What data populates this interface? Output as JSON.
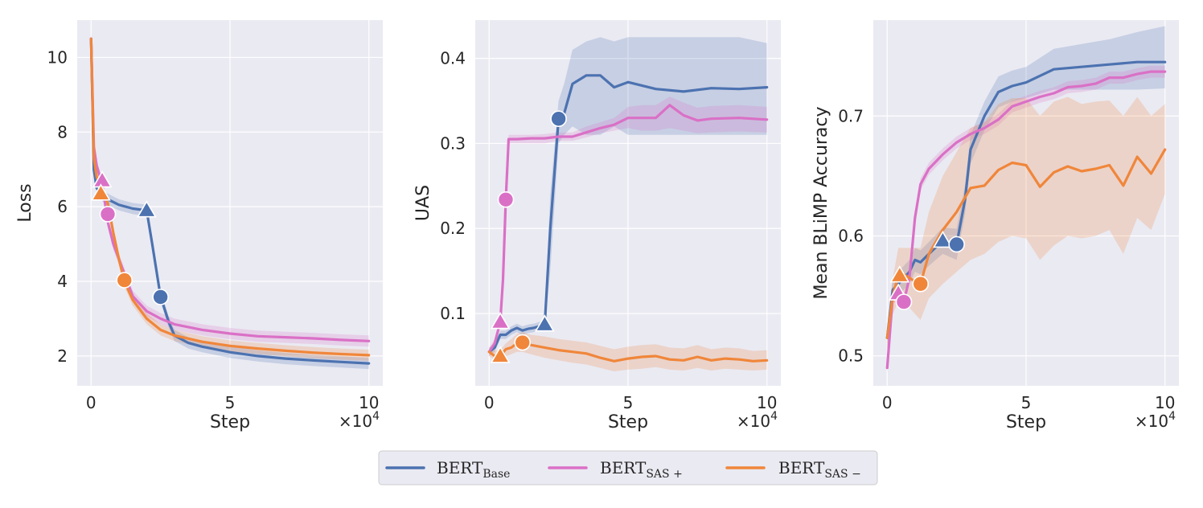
{
  "legend": [
    {
      "base": "BERT",
      "sub": "Base",
      "color": "#4c72b0"
    },
    {
      "base": "BERT",
      "sub": "SAS +",
      "color": "#da70c6"
    },
    {
      "base": "BERT",
      "sub": "SAS −",
      "color": "#f0863a"
    }
  ],
  "scale_label": "×10",
  "scale_exp": "4",
  "chart_data": [
    {
      "type": "line",
      "xlabel": "Step",
      "ylabel": "Loss",
      "xlim": [
        -0.5,
        10.5
      ],
      "ylim": [
        1.2,
        11.0
      ],
      "xticks": [
        0,
        5,
        10
      ],
      "yticks": [
        2,
        4,
        6,
        8,
        10
      ],
      "grid": true,
      "series": [
        {
          "color": "#4c72b0",
          "x": [
            0,
            0.1,
            0.2,
            0.4,
            0.6,
            1,
            1.5,
            2,
            2.2,
            2.5,
            2.8,
            3,
            3.5,
            4,
            5,
            6,
            7,
            8,
            9,
            10
          ],
          "y": [
            10.5,
            7.0,
            6.5,
            6.3,
            6.2,
            6.05,
            5.95,
            5.9,
            5.0,
            3.6,
            2.9,
            2.55,
            2.35,
            2.25,
            2.1,
            2.0,
            1.93,
            1.88,
            1.84,
            1.8
          ],
          "band": [
            0.15,
            0.15,
            0.15,
            0.15,
            0.15,
            0.15,
            0.15,
            0.15,
            0.15,
            0.15,
            0.15,
            0.15,
            0.15,
            0.15,
            0.15,
            0.15,
            0.15,
            0.15,
            0.15,
            0.15
          ],
          "markers": [
            {
              "x": 2.0,
              "y": 5.9,
              "shape": "triangle"
            },
            {
              "x": 2.5,
              "y": 3.58,
              "shape": "circle"
            }
          ]
        },
        {
          "color": "#da70c6",
          "x": [
            0,
            0.1,
            0.2,
            0.4,
            0.6,
            0.8,
            1,
            1.2,
            1.5,
            2,
            2.5,
            3,
            4,
            5,
            6,
            7,
            8,
            9,
            10
          ],
          "y": [
            10.5,
            7.6,
            7.1,
            6.6,
            5.6,
            5.0,
            4.6,
            4.2,
            3.6,
            3.2,
            3.0,
            2.85,
            2.7,
            2.6,
            2.53,
            2.5,
            2.47,
            2.43,
            2.4
          ],
          "band": [
            0.15,
            0.15,
            0.15,
            0.15,
            0.15,
            0.15,
            0.15,
            0.15,
            0.15,
            0.15,
            0.15,
            0.15,
            0.15,
            0.15,
            0.15,
            0.15,
            0.15,
            0.15,
            0.15
          ],
          "markers": [
            {
              "x": 0.4,
              "y": 6.7,
              "shape": "triangle"
            },
            {
              "x": 0.6,
              "y": 5.8,
              "shape": "circle"
            }
          ]
        },
        {
          "color": "#f0863a",
          "x": [
            0,
            0.1,
            0.2,
            0.4,
            0.6,
            0.8,
            1,
            1.2,
            1.5,
            2,
            2.5,
            3,
            4,
            5,
            6,
            7,
            8,
            9,
            10
          ],
          "y": [
            10.5,
            7.3,
            6.8,
            6.4,
            6.1,
            5.3,
            4.6,
            4.0,
            3.5,
            3.0,
            2.7,
            2.55,
            2.38,
            2.27,
            2.2,
            2.14,
            2.09,
            2.05,
            2.02
          ],
          "band": [
            0.15,
            0.15,
            0.15,
            0.15,
            0.15,
            0.15,
            0.15,
            0.15,
            0.15,
            0.15,
            0.15,
            0.15,
            0.15,
            0.15,
            0.15,
            0.15,
            0.15,
            0.15,
            0.15
          ],
          "markers": [
            {
              "x": 0.35,
              "y": 6.35,
              "shape": "triangle"
            },
            {
              "x": 1.2,
              "y": 4.03,
              "shape": "circle"
            }
          ]
        }
      ]
    },
    {
      "type": "line",
      "xlabel": "Step",
      "ylabel": "UAS",
      "xlim": [
        -0.5,
        10.5
      ],
      "ylim": [
        0.015,
        0.445
      ],
      "xticks": [
        0,
        5,
        10
      ],
      "yticks": [
        0.1,
        0.2,
        0.3,
        0.4
      ],
      "grid": true,
      "series": [
        {
          "color": "#4c72b0",
          "x": [
            0,
            0.2,
            0.4,
            0.6,
            0.8,
            1,
            1.2,
            1.4,
            1.6,
            1.8,
            2,
            2.2,
            2.5,
            2.7,
            3,
            3.5,
            4,
            4.5,
            5,
            6,
            7,
            8,
            9,
            10
          ],
          "y": [
            0.055,
            0.06,
            0.075,
            0.075,
            0.08,
            0.083,
            0.08,
            0.082,
            0.083,
            0.085,
            0.087,
            0.2,
            0.329,
            0.335,
            0.37,
            0.38,
            0.38,
            0.366,
            0.372,
            0.364,
            0.361,
            0.365,
            0.364,
            0.366
          ],
          "lo": [
            0.05,
            0.055,
            0.07,
            0.07,
            0.075,
            0.078,
            0.075,
            0.077,
            0.078,
            0.08,
            0.082,
            0.15,
            0.3,
            0.31,
            0.32,
            0.31,
            0.31,
            0.32,
            0.31,
            0.31,
            0.31,
            0.31,
            0.31,
            0.31
          ],
          "hi": [
            0.06,
            0.065,
            0.08,
            0.08,
            0.085,
            0.088,
            0.085,
            0.087,
            0.088,
            0.09,
            0.092,
            0.24,
            0.35,
            0.37,
            0.41,
            0.42,
            0.425,
            0.42,
            0.425,
            0.425,
            0.425,
            0.425,
            0.425,
            0.418
          ],
          "markers": [
            {
              "x": 2.0,
              "y": 0.087,
              "shape": "triangle"
            },
            {
              "x": 2.5,
              "y": 0.329,
              "shape": "circle"
            }
          ]
        },
        {
          "color": "#da70c6",
          "x": [
            0,
            0.2,
            0.4,
            0.5,
            0.6,
            0.7,
            1,
            1.5,
            2,
            2.5,
            3,
            3.5,
            4,
            4.5,
            5,
            5.5,
            6,
            6.5,
            7,
            7.5,
            8,
            9,
            10
          ],
          "y": [
            0.055,
            0.065,
            0.09,
            0.14,
            0.234,
            0.305,
            0.305,
            0.306,
            0.306,
            0.308,
            0.308,
            0.313,
            0.318,
            0.322,
            0.33,
            0.33,
            0.33,
            0.345,
            0.333,
            0.327,
            0.329,
            0.33,
            0.328
          ],
          "lo": [
            0.05,
            0.06,
            0.085,
            0.13,
            0.22,
            0.3,
            0.3,
            0.3,
            0.3,
            0.303,
            0.303,
            0.307,
            0.312,
            0.315,
            0.318,
            0.315,
            0.315,
            0.318,
            0.315,
            0.312,
            0.313,
            0.314,
            0.313
          ],
          "hi": [
            0.06,
            0.07,
            0.095,
            0.15,
            0.25,
            0.31,
            0.31,
            0.31,
            0.311,
            0.313,
            0.313,
            0.32,
            0.325,
            0.33,
            0.343,
            0.345,
            0.345,
            0.355,
            0.348,
            0.342,
            0.344,
            0.345,
            0.343
          ],
          "markers": [
            {
              "x": 0.4,
              "y": 0.09,
              "shape": "triangle"
            },
            {
              "x": 0.6,
              "y": 0.234,
              "shape": "circle"
            }
          ]
        },
        {
          "color": "#f0863a",
          "x": [
            0,
            0.2,
            0.4,
            0.6,
            0.8,
            1,
            1.2,
            1.5,
            2,
            2.5,
            3,
            3.5,
            4,
            4.5,
            5,
            5.5,
            6,
            6.5,
            7,
            7.5,
            8,
            8.5,
            9,
            9.5,
            10
          ],
          "y": [
            0.055,
            0.05,
            0.05,
            0.058,
            0.06,
            0.065,
            0.066,
            0.063,
            0.06,
            0.057,
            0.055,
            0.053,
            0.048,
            0.044,
            0.047,
            0.049,
            0.05,
            0.046,
            0.045,
            0.049,
            0.045,
            0.047,
            0.046,
            0.044,
            0.045
          ],
          "lo": [
            0.05,
            0.045,
            0.045,
            0.05,
            0.052,
            0.055,
            0.055,
            0.052,
            0.048,
            0.045,
            0.042,
            0.04,
            0.036,
            0.032,
            0.034,
            0.035,
            0.037,
            0.034,
            0.033,
            0.036,
            0.033,
            0.035,
            0.034,
            0.033,
            0.034
          ],
          "hi": [
            0.06,
            0.057,
            0.057,
            0.065,
            0.07,
            0.076,
            0.078,
            0.075,
            0.073,
            0.07,
            0.068,
            0.066,
            0.062,
            0.058,
            0.061,
            0.063,
            0.064,
            0.06,
            0.059,
            0.063,
            0.058,
            0.06,
            0.059,
            0.056,
            0.057
          ],
          "markers": [
            {
              "x": 0.4,
              "y": 0.05,
              "shape": "triangle"
            },
            {
              "x": 1.2,
              "y": 0.066,
              "shape": "circle"
            }
          ]
        }
      ]
    },
    {
      "type": "line",
      "xlabel": "Step",
      "ylabel": "Mean BLiMP Accuracy",
      "xlim": [
        -0.5,
        10.5
      ],
      "ylim": [
        0.475,
        0.78
      ],
      "xticks": [
        0,
        5,
        10
      ],
      "yticks": [
        0.5,
        0.6,
        0.7
      ],
      "grid": true,
      "series": [
        {
          "color": "#4c72b0",
          "x": [
            0,
            0.2,
            0.4,
            0.6,
            0.8,
            1,
            1.2,
            1.5,
            2,
            2.5,
            2.8,
            3,
            3.5,
            4,
            4.5,
            5,
            6,
            7,
            8,
            9,
            10
          ],
          "y": [
            0.515,
            0.555,
            0.56,
            0.565,
            0.57,
            0.58,
            0.578,
            0.585,
            0.596,
            0.593,
            0.63,
            0.672,
            0.7,
            0.72,
            0.725,
            0.728,
            0.739,
            0.741,
            0.743,
            0.745,
            0.745
          ],
          "lo": [
            0.505,
            0.545,
            0.55,
            0.555,
            0.56,
            0.57,
            0.568,
            0.575,
            0.585,
            0.58,
            0.618,
            0.66,
            0.688,
            0.707,
            0.712,
            0.715,
            0.722,
            0.722,
            0.722,
            0.722,
            0.723
          ],
          "hi": [
            0.525,
            0.565,
            0.57,
            0.575,
            0.58,
            0.59,
            0.588,
            0.595,
            0.607,
            0.606,
            0.642,
            0.684,
            0.712,
            0.733,
            0.738,
            0.741,
            0.756,
            0.76,
            0.764,
            0.77,
            0.775
          ],
          "markers": [
            {
              "x": 2.0,
              "y": 0.596,
              "shape": "triangle"
            },
            {
              "x": 2.5,
              "y": 0.593,
              "shape": "circle"
            }
          ]
        },
        {
          "color": "#da70c6",
          "x": [
            0,
            0.2,
            0.4,
            0.6,
            0.8,
            1,
            1.2,
            1.5,
            2,
            2.5,
            3,
            3.5,
            4,
            4.5,
            5,
            5.5,
            6,
            6.5,
            7,
            7.5,
            8,
            8.5,
            9,
            9.5,
            10
          ],
          "y": [
            0.49,
            0.55,
            0.548,
            0.545,
            0.565,
            0.615,
            0.643,
            0.656,
            0.668,
            0.678,
            0.685,
            0.69,
            0.697,
            0.708,
            0.712,
            0.716,
            0.719,
            0.724,
            0.725,
            0.727,
            0.732,
            0.732,
            0.735,
            0.737,
            0.737
          ],
          "lo": [
            0.485,
            0.545,
            0.543,
            0.54,
            0.56,
            0.61,
            0.638,
            0.651,
            0.663,
            0.673,
            0.68,
            0.685,
            0.692,
            0.703,
            0.707,
            0.711,
            0.714,
            0.719,
            0.72,
            0.722,
            0.727,
            0.727,
            0.73,
            0.732,
            0.732
          ],
          "hi": [
            0.495,
            0.555,
            0.553,
            0.55,
            0.57,
            0.62,
            0.648,
            0.661,
            0.673,
            0.683,
            0.69,
            0.695,
            0.702,
            0.713,
            0.717,
            0.721,
            0.724,
            0.729,
            0.73,
            0.732,
            0.737,
            0.737,
            0.74,
            0.742,
            0.742
          ],
          "markers": [
            {
              "x": 0.4,
              "y": 0.552,
              "shape": "triangle"
            },
            {
              "x": 0.6,
              "y": 0.545,
              "shape": "circle"
            }
          ]
        },
        {
          "color": "#f0863a",
          "x": [
            0,
            0.2,
            0.4,
            0.6,
            0.8,
            1,
            1.2,
            1.5,
            2,
            2.5,
            3,
            3.5,
            4,
            4.5,
            5,
            5.5,
            6,
            6.5,
            7,
            7.5,
            8,
            8.5,
            9,
            9.5,
            10
          ],
          "y": [
            0.515,
            0.55,
            0.567,
            0.568,
            0.565,
            0.562,
            0.56,
            0.585,
            0.605,
            0.62,
            0.64,
            0.642,
            0.655,
            0.661,
            0.659,
            0.641,
            0.653,
            0.658,
            0.654,
            0.656,
            0.659,
            0.642,
            0.666,
            0.652,
            0.672
          ],
          "lo": [
            0.505,
            0.535,
            0.545,
            0.545,
            0.54,
            0.535,
            0.53,
            0.548,
            0.56,
            0.57,
            0.58,
            0.585,
            0.595,
            0.6,
            0.598,
            0.58,
            0.592,
            0.6,
            0.598,
            0.6,
            0.605,
            0.585,
            0.615,
            0.605,
            0.635
          ],
          "hi": [
            0.525,
            0.565,
            0.59,
            0.59,
            0.59,
            0.59,
            0.59,
            0.62,
            0.65,
            0.67,
            0.69,
            0.695,
            0.71,
            0.715,
            0.715,
            0.7,
            0.712,
            0.716,
            0.71,
            0.712,
            0.713,
            0.7,
            0.716,
            0.7,
            0.71
          ],
          "markers": [
            {
              "x": 0.45,
              "y": 0.567,
              "shape": "triangle"
            },
            {
              "x": 1.2,
              "y": 0.56,
              "shape": "circle"
            }
          ]
        }
      ]
    }
  ]
}
